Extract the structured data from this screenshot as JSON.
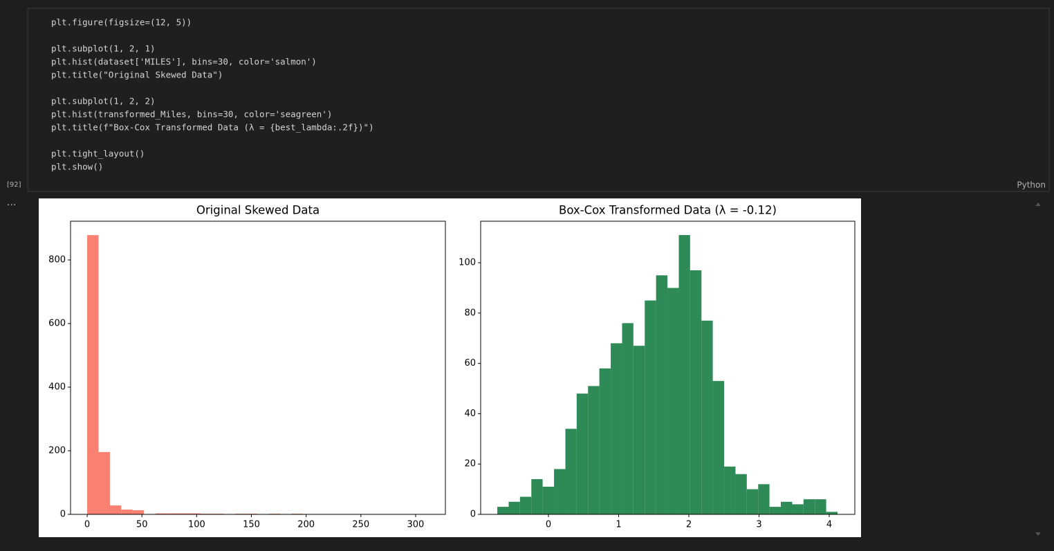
{
  "cell": {
    "execution_count": "[92]",
    "language": "Python",
    "more": "...",
    "code_blocks": [
      [
        "plt.figure(figsize=(12, 5))"
      ],
      [
        "plt.subplot(1, 2, 1)",
        "plt.hist(dataset['MILES'], bins=30, color='salmon')",
        "plt.title(\"Original Skewed Data\")"
      ],
      [
        "plt.subplot(1, 2, 2)",
        "plt.hist(transformed_Miles, bins=30, color='seagreen')",
        "plt.title(f\"Box-Cox Transformed Data (λ = {best_lambda:.2f})\")"
      ],
      [
        "plt.tight_layout()",
        "plt.show()"
      ]
    ]
  },
  "chart_data": [
    {
      "type": "histogram",
      "title": "Original Skewed Data",
      "color": "#fa8072",
      "bins": [
        0,
        10.4,
        20.8,
        31.1,
        41.5,
        51.9,
        62.3,
        72.7,
        83.0,
        93.4,
        103.8,
        114.2,
        124.6,
        134.9,
        145.3,
        155.7,
        166.1,
        176.5,
        186.8,
        197.2,
        207.6,
        218.0,
        228.4,
        238.7,
        249.1,
        259.5,
        269.9,
        280.3,
        290.6,
        301.0,
        311.4
      ],
      "values": [
        878,
        196,
        28,
        15,
        13,
        0,
        3,
        3,
        3,
        3,
        2,
        2,
        1,
        2,
        2,
        1,
        2,
        0,
        2,
        0,
        0,
        0,
        0,
        0,
        0,
        0,
        0,
        0,
        0,
        1
      ],
      "xlim": [
        -15.2,
        327.2
      ],
      "xticks": [
        0,
        50,
        100,
        150,
        200,
        250,
        300
      ],
      "ylim": [
        0,
        921.7
      ],
      "yticks": [
        0,
        200,
        400,
        600,
        800
      ]
    },
    {
      "type": "histogram",
      "title": "Box-Cox Transformed Data (λ = -0.12)",
      "color": "#2e8b57",
      "bins": [
        -0.729,
        -0.567,
        -0.406,
        -0.244,
        -0.083,
        0.079,
        0.241,
        0.402,
        0.564,
        0.725,
        0.887,
        1.049,
        1.21,
        1.372,
        1.533,
        1.695,
        1.857,
        2.018,
        2.18,
        2.341,
        2.503,
        2.665,
        2.826,
        2.988,
        3.149,
        3.311,
        3.473,
        3.634,
        3.796,
        3.957,
        4.119
      ],
      "values": [
        3,
        5,
        7,
        14,
        11,
        18,
        34,
        48,
        51,
        58,
        68,
        76,
        67,
        85,
        95,
        90,
        111,
        97,
        77,
        53,
        19,
        16,
        10,
        12,
        3,
        5,
        4,
        6,
        6,
        1
      ],
      "xlim": [
        -0.966,
        4.365
      ],
      "xticks": [
        0,
        1,
        2,
        3,
        4
      ],
      "ylim": [
        0,
        116.5
      ],
      "yticks": [
        0,
        20,
        40,
        60,
        80,
        100
      ]
    }
  ]
}
